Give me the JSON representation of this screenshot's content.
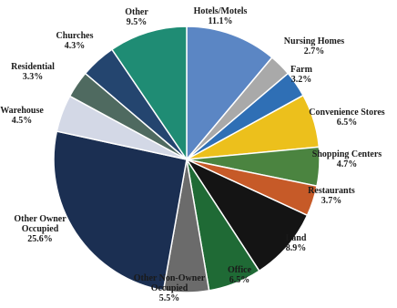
{
  "chart_data": {
    "type": "pie",
    "title": "",
    "start_angle_deg": 0,
    "direction": "clockwise",
    "slices": [
      {
        "label": "Hotels/Motels",
        "value_text": "11.1%",
        "value": 11.1,
        "color": "#5b86c4"
      },
      {
        "label": "Nursing Homes",
        "value_text": "2.7%",
        "value": 2.7,
        "color": "#a9a9a9"
      },
      {
        "label": "Farm",
        "value_text": "3.2%",
        "value": 3.2,
        "color": "#2f6fb5"
      },
      {
        "label": "Convenience Stores",
        "value_text": "6.5%",
        "value": 6.5,
        "color": "#ecc01c"
      },
      {
        "label": "Shopping Centers",
        "value_text": "4.7%",
        "value": 4.7,
        "color": "#4b8440"
      },
      {
        "label": "Restaurants",
        "value_text": "3.7%",
        "value": 3.7,
        "color": "#c65a28"
      },
      {
        "label": "Land",
        "value_text": "8.9%",
        "value": 8.9,
        "color": "#141414"
      },
      {
        "label": "Office",
        "value_text": "6.5%",
        "value": 6.5,
        "color": "#1f6a35"
      },
      {
        "label": "Other Non-Owner Occupied",
        "value_text": "5.5%",
        "value": 5.5,
        "color": "#6b6b6b"
      },
      {
        "label": "Other Owner Occupied",
        "value_text": "25.6%",
        "value": 25.6,
        "color": "#1b2f52"
      },
      {
        "label": "Warehouse",
        "value_text": "4.5%",
        "value": 4.5,
        "color": "#d3d8e6"
      },
      {
        "label": "Residential",
        "value_text": "3.3%",
        "value": 3.3,
        "color": "#4f6a60"
      },
      {
        "label": "Churches",
        "value_text": "4.3%",
        "value": 4.3,
        "color": "#24456f"
      },
      {
        "label": "Other",
        "value_text": "9.5%",
        "value": 9.5,
        "color": "#1f8c74"
      }
    ]
  }
}
